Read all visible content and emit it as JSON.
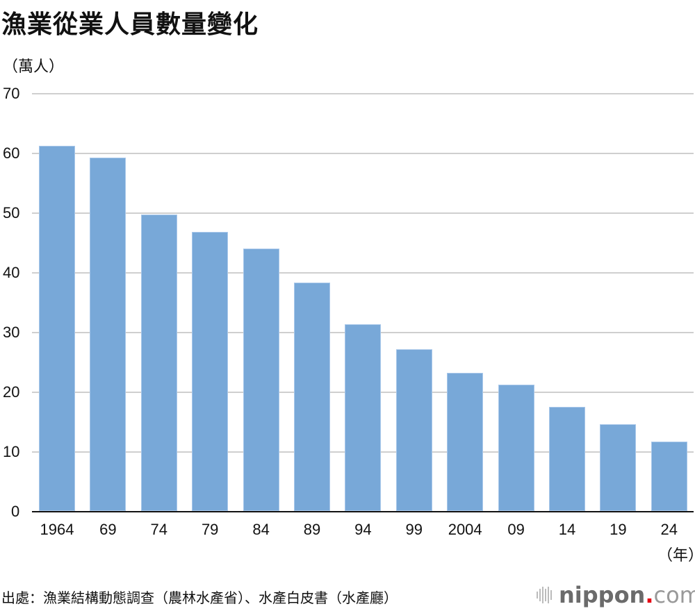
{
  "title": "漁業從業人員數量變化",
  "unit_label": "（萬人）",
  "x_unit_label": "（年）",
  "source": "出處：漁業結構動態調查（農林水產省）、水產白皮書（水產廳）",
  "logo": {
    "name": "nippon",
    "dot": ".",
    "suffix": "com"
  },
  "colors": {
    "bar": "#78a8d8",
    "grid": "#cfcfcf",
    "axis": "#111111",
    "logo_dot": "#e60012"
  },
  "y_ticks": [
    "70",
    "60",
    "50",
    "40",
    "30",
    "20",
    "10",
    "0"
  ],
  "x_ticks": [
    "1964",
    "69",
    "74",
    "79",
    "84",
    "89",
    "94",
    "99",
    "2004",
    "09",
    "14",
    "19",
    "24"
  ],
  "chart_data": {
    "type": "bar",
    "title": "漁業從業人員數量變化",
    "xlabel": "（年）",
    "ylabel": "（萬人）",
    "categories": [
      "1964",
      "69",
      "74",
      "79",
      "84",
      "89",
      "94",
      "99",
      "2004",
      "09",
      "14",
      "19",
      "24"
    ],
    "values": [
      61.2,
      59.2,
      49.7,
      46.8,
      44.0,
      38.3,
      31.3,
      27.1,
      23.1,
      21.2,
      17.4,
      14.5,
      11.6
    ],
    "ylim": [
      0,
      70
    ],
    "yticks": [
      0,
      10,
      20,
      30,
      40,
      50,
      60,
      70
    ],
    "grid": true,
    "legend": "none"
  }
}
